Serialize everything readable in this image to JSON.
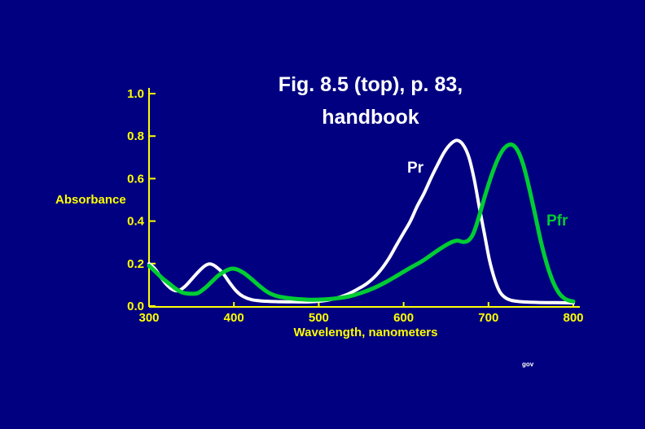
{
  "slide": {
    "title_line1": "Fig. 8.5 (top), p. 83,",
    "title_line2": "handbook",
    "watermark": "gov",
    "background_color": "#000080"
  },
  "chart_data": {
    "type": "line",
    "title": "Fig. 8.5 (top), p. 83, handbook",
    "xlabel": "Wavelength, nanometers",
    "ylabel": "Absorbance",
    "xlim": [
      300,
      800
    ],
    "ylim": [
      0.0,
      1.0
    ],
    "x_ticks": [
      300,
      400,
      500,
      600,
      700,
      800
    ],
    "x_tick_labels": [
      "300",
      "400",
      "500",
      "600",
      "700",
      "800"
    ],
    "y_ticks": [
      0.0,
      0.2,
      0.4,
      0.6,
      0.8,
      1.0
    ],
    "y_tick_labels": [
      "0.0",
      "0.2",
      "0.4",
      "0.6",
      "0.8",
      "1.0"
    ],
    "grid": false,
    "axis_color": "#FFFF00",
    "tick_label_color": "#FFFF00",
    "legend": "inline annotations",
    "annotations": [
      {
        "text": "Pr",
        "x": 615,
        "y": 0.64,
        "color": "#FFFFFF"
      },
      {
        "text": "Pfr",
        "x": 780,
        "y": 0.4,
        "color": "#00CC33"
      }
    ],
    "series": [
      {
        "name": "Pr",
        "color": "#FFFFFF",
        "stroke_width": 4,
        "points": [
          [
            300,
            0.2
          ],
          [
            307,
            0.175
          ],
          [
            314,
            0.135
          ],
          [
            321,
            0.1
          ],
          [
            328,
            0.077
          ],
          [
            335,
            0.073
          ],
          [
            343,
            0.095
          ],
          [
            351,
            0.13
          ],
          [
            359,
            0.165
          ],
          [
            366,
            0.19
          ],
          [
            372,
            0.198
          ],
          [
            379,
            0.185
          ],
          [
            387,
            0.155
          ],
          [
            395,
            0.11
          ],
          [
            403,
            0.07
          ],
          [
            411,
            0.045
          ],
          [
            421,
            0.03
          ],
          [
            433,
            0.024
          ],
          [
            450,
            0.021
          ],
          [
            470,
            0.02
          ],
          [
            490,
            0.02
          ],
          [
            505,
            0.024
          ],
          [
            518,
            0.034
          ],
          [
            532,
            0.052
          ],
          [
            546,
            0.08
          ],
          [
            558,
            0.11
          ],
          [
            570,
            0.155
          ],
          [
            582,
            0.22
          ],
          [
            592,
            0.29
          ],
          [
            600,
            0.345
          ],
          [
            608,
            0.4
          ],
          [
            616,
            0.47
          ],
          [
            624,
            0.53
          ],
          [
            632,
            0.6
          ],
          [
            640,
            0.665
          ],
          [
            648,
            0.725
          ],
          [
            656,
            0.765
          ],
          [
            663,
            0.78
          ],
          [
            670,
            0.76
          ],
          [
            677,
            0.7
          ],
          [
            683,
            0.6
          ],
          [
            689,
            0.47
          ],
          [
            695,
            0.345
          ],
          [
            701,
            0.22
          ],
          [
            707,
            0.13
          ],
          [
            713,
            0.07
          ],
          [
            719,
            0.042
          ],
          [
            727,
            0.027
          ],
          [
            740,
            0.02
          ],
          [
            760,
            0.017
          ],
          [
            780,
            0.016
          ],
          [
            800,
            0.015
          ]
        ]
      },
      {
        "name": "Pfr",
        "color": "#00CC33",
        "stroke_width": 5,
        "points": [
          [
            300,
            0.19
          ],
          [
            308,
            0.16
          ],
          [
            316,
            0.13
          ],
          [
            324,
            0.105
          ],
          [
            332,
            0.08
          ],
          [
            340,
            0.063
          ],
          [
            350,
            0.058
          ],
          [
            358,
            0.062
          ],
          [
            366,
            0.085
          ],
          [
            374,
            0.115
          ],
          [
            382,
            0.145
          ],
          [
            390,
            0.165
          ],
          [
            397,
            0.176
          ],
          [
            404,
            0.172
          ],
          [
            412,
            0.155
          ],
          [
            420,
            0.13
          ],
          [
            430,
            0.095
          ],
          [
            440,
            0.065
          ],
          [
            450,
            0.048
          ],
          [
            460,
            0.04
          ],
          [
            475,
            0.033
          ],
          [
            490,
            0.03
          ],
          [
            505,
            0.031
          ],
          [
            520,
            0.036
          ],
          [
            535,
            0.045
          ],
          [
            550,
            0.062
          ],
          [
            565,
            0.085
          ],
          [
            580,
            0.115
          ],
          [
            595,
            0.15
          ],
          [
            610,
            0.185
          ],
          [
            622,
            0.212
          ],
          [
            634,
            0.245
          ],
          [
            645,
            0.275
          ],
          [
            655,
            0.298
          ],
          [
            663,
            0.308
          ],
          [
            670,
            0.302
          ],
          [
            676,
            0.308
          ],
          [
            682,
            0.34
          ],
          [
            688,
            0.41
          ],
          [
            696,
            0.52
          ],
          [
            704,
            0.62
          ],
          [
            712,
            0.7
          ],
          [
            719,
            0.745
          ],
          [
            727,
            0.76
          ],
          [
            734,
            0.735
          ],
          [
            741,
            0.665
          ],
          [
            748,
            0.555
          ],
          [
            755,
            0.43
          ],
          [
            762,
            0.3
          ],
          [
            769,
            0.195
          ],
          [
            776,
            0.115
          ],
          [
            783,
            0.062
          ],
          [
            790,
            0.035
          ],
          [
            796,
            0.025
          ],
          [
            800,
            0.022
          ]
        ]
      }
    ]
  }
}
